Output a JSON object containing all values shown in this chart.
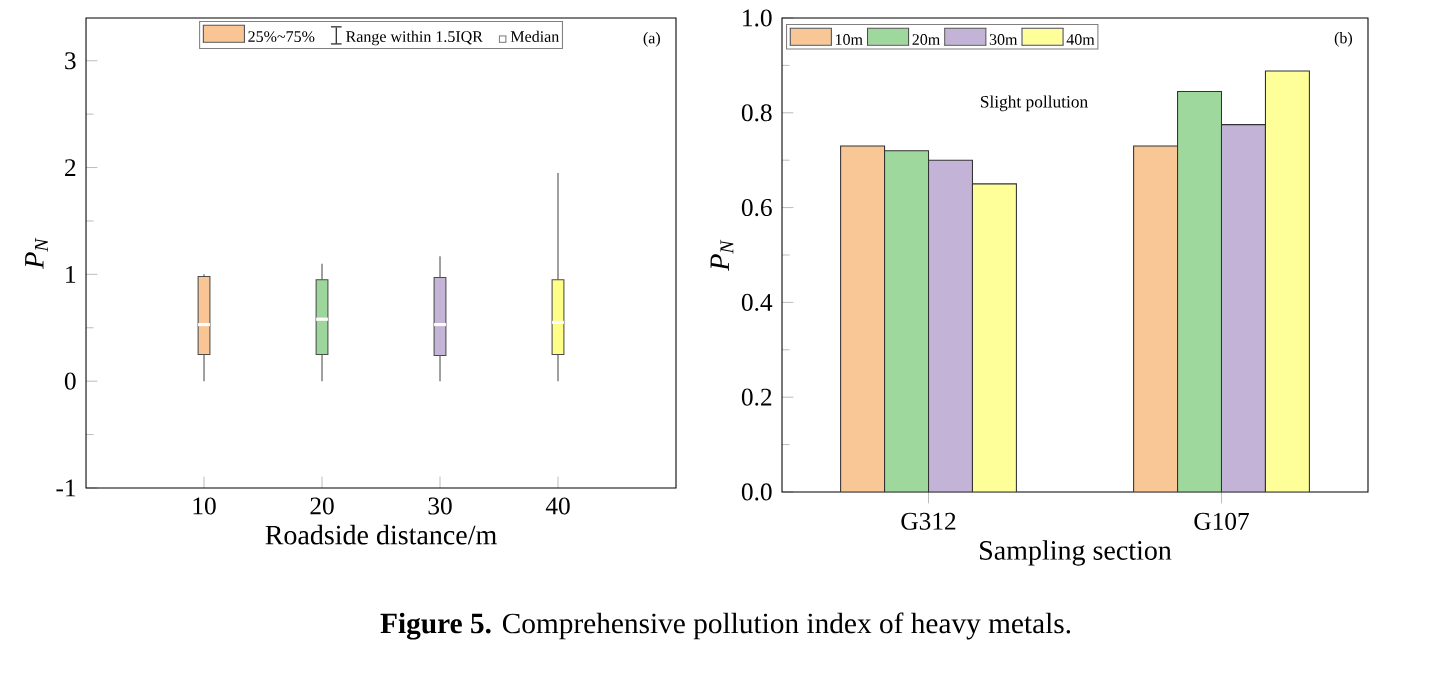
{
  "chart_data": [
    {
      "type": "box",
      "categories": [
        "10",
        "20",
        "30",
        "40"
      ],
      "xlabel": "Roadside distance/m",
      "ylabel": "P$_{N}$",
      "ylim": [
        -1,
        3.4
      ],
      "yticks": [
        -1,
        0,
        1,
        2,
        3
      ],
      "legend": "top",
      "series": [
        {
          "name": "25%~75%",
          "colors": [
            "#f9c595",
            "#9dd69a",
            "#c3b4d8",
            "#ffff88"
          ],
          "boxes": [
            {
              "low": 0,
              "q1": 0.25,
              "median": 0.53,
              "q3": 0.98,
              "high": 1.0
            },
            {
              "low": 0,
              "q1": 0.25,
              "median": 0.58,
              "q3": 0.95,
              "high": 1.1
            },
            {
              "low": 0,
              "q1": 0.24,
              "median": 0.53,
              "q3": 0.97,
              "high": 1.17
            },
            {
              "low": 0,
              "q1": 0.25,
              "median": 0.55,
              "q3": 0.95,
              "high": 1.95
            }
          ]
        }
      ],
      "annotations": [
        "Range within 1.5IQR",
        "Median",
        "(a)",
        "**Figure 5.** Comprehensive pollution index of heavy metals."
      ]
    },
    {
      "type": "bar",
      "categories": [
        "G312",
        "G107"
      ],
      "xlabel": "Sampling section",
      "ylabel": "P$_{N}$",
      "ylim": [
        0,
        1.0
      ],
      "yticks": [
        {
          "value": 0,
          "label": "0.0"
        },
        {
          "value": 0.2,
          "label": "0.2"
        },
        {
          "value": 0.4,
          "label": "0.4"
        },
        {
          "value": 0.6,
          "label": "0.6"
        },
        {
          "value": 0.8,
          "label": "0.8"
        },
        {
          "value": 1.0,
          "label": "1.0"
        }
      ],
      "legend": "top left",
      "series": [
        {
          "name": "10m",
          "color": "#f9c796",
          "values": [
            0.73,
            0.73
          ]
        },
        {
          "name": "20m",
          "color": "#9fd89d",
          "values": [
            0.72,
            0.845
          ]
        },
        {
          "name": "30m",
          "color": "#c2b3d7",
          "values": [
            0.7,
            0.775
          ]
        },
        {
          "name": "40m",
          "color": "#ffff99",
          "values": [
            0.65,
            0.888
          ]
        }
      ],
      "annotations": [
        "Slight pollution",
        "(b)"
      ]
    }
  ]
}
